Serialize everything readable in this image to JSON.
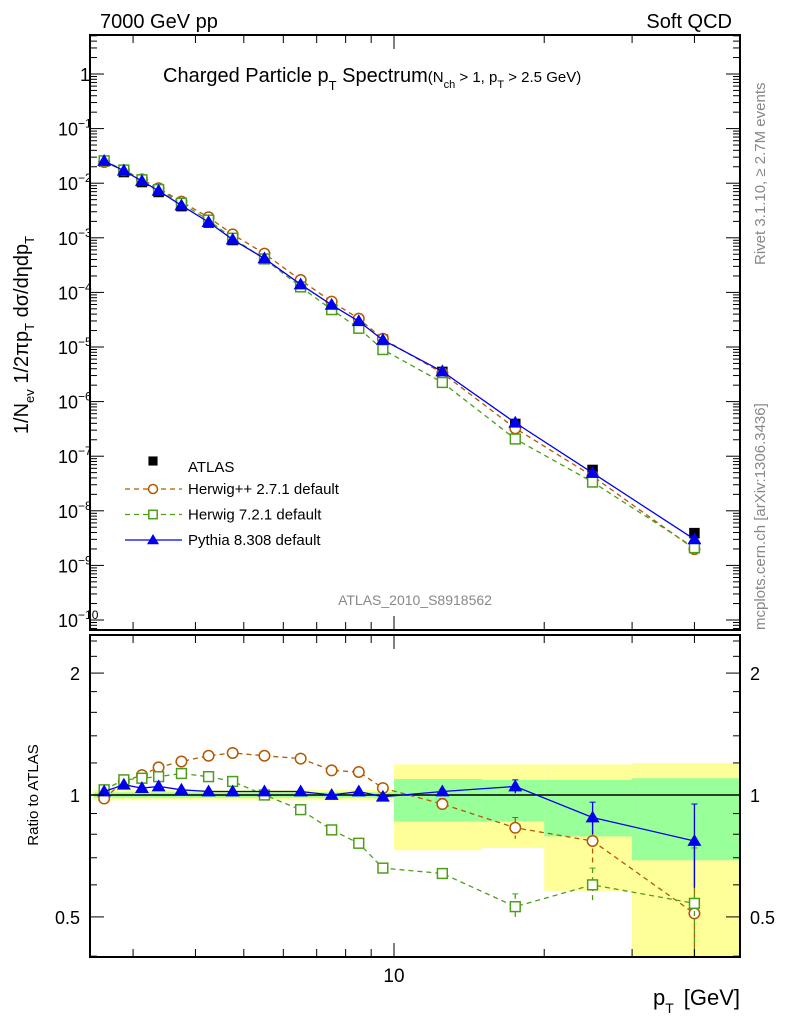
{
  "header": {
    "left": "7000 GeV pp",
    "right": "Soft QCD"
  },
  "side_text": {
    "rivet": "Rivet 3.1.10, ≥ 2.7M events",
    "mcplots": "mcplots.cern.ch [arXiv:1306.3436]"
  },
  "watermark": "ATLAS_2010_S8918562",
  "chart_data": {
    "type": "line",
    "title": {
      "main": "Charged Particle p",
      "main_sub": "T",
      "main_end": " Spectrum",
      "cond_a": "(N",
      "cond_a_sub": "ch",
      "cond_b": " > 1, p",
      "cond_b_sub": "T",
      "cond_c": " > 2.5 GeV)"
    },
    "xlabel": {
      "main": "p",
      "sub": "T",
      "unit": "[GeV]"
    },
    "ylabel": {
      "p1": "1/N",
      "p1_sub": "ev",
      "p2": " 1/2πp",
      "p2_sub": "T",
      "p3": " dσ/dηdp",
      "p3_sub": "T"
    },
    "ratio_ylabel": "Ratio to ATLAS",
    "xscale": "log",
    "xlim": [
      2.45,
      50
    ],
    "ylim": [
      6.5e-11,
      5
    ],
    "yscale": "log",
    "ratio_ylim": [
      0.4,
      2.5
    ],
    "x_tick_labels": [
      {
        "value": 10,
        "label": "10"
      }
    ],
    "y_tick_labels": [
      {
        "value": 1,
        "base": "1",
        "exp": ""
      },
      {
        "value": 0.1,
        "base": "10",
        "exp": "−1"
      },
      {
        "value": 0.01,
        "base": "10",
        "exp": "−2"
      },
      {
        "value": 0.001,
        "base": "10",
        "exp": "−3"
      },
      {
        "value": 0.0001,
        "base": "10",
        "exp": "−4"
      },
      {
        "value": 1e-05,
        "base": "10",
        "exp": "−5"
      },
      {
        "value": 1e-06,
        "base": "10",
        "exp": "−6"
      },
      {
        "value": 1e-07,
        "base": "10",
        "exp": "−7"
      },
      {
        "value": 1e-08,
        "base": "10",
        "exp": "−8"
      },
      {
        "value": 1e-09,
        "base": "10",
        "exp": "−9"
      },
      {
        "value": 1e-10,
        "base": "10",
        "exp": "−10"
      }
    ],
    "ratio_tick_labels": [
      {
        "value": 2,
        "label": "2"
      },
      {
        "value": 1,
        "label": "1"
      },
      {
        "value": 0.5,
        "label": "0.5"
      }
    ],
    "x": [
      2.625,
      2.875,
      3.125,
      3.375,
      3.75,
      4.25,
      4.75,
      5.5,
      6.5,
      7.5,
      8.5,
      9.5,
      12.5,
      17.5,
      25,
      40
    ],
    "bin_edges": [
      2.5,
      2.75,
      3,
      3.25,
      3.5,
      4,
      4.5,
      5,
      6,
      7,
      8,
      9,
      10,
      15,
      20,
      30,
      50
    ],
    "atlas": {
      "name": "ATLAS",
      "color": "#000000",
      "values": [
        0.025,
        0.016,
        0.0105,
        0.0069,
        0.0038,
        0.0019,
        0.00091,
        0.00041,
        0.000137,
        5.9e-05,
        2.9e-05,
        1.36e-05,
        3.5e-06,
        3.9e-07,
        5.6e-08,
        3.9e-09
      ],
      "band_total": [
        [
          0.97,
          1.03
        ],
        [
          0.97,
          1.03
        ],
        [
          0.97,
          1.03
        ],
        [
          0.97,
          1.03
        ],
        [
          0.97,
          1.03
        ],
        [
          0.97,
          1.03
        ],
        [
          0.97,
          1.03
        ],
        [
          0.97,
          1.03
        ],
        [
          0.97,
          1.03
        ],
        [
          0.97,
          1.03
        ],
        [
          0.97,
          1.03
        ],
        [
          0.97,
          1.03
        ],
        [
          0.73,
          1.19
        ],
        [
          0.74,
          1.19
        ],
        [
          0.58,
          1.19
        ],
        [
          0.3,
          1.2
        ]
      ],
      "band_stat": [
        [
          0.985,
          1.015
        ],
        [
          0.985,
          1.015
        ],
        [
          0.985,
          1.015
        ],
        [
          0.985,
          1.015
        ],
        [
          0.985,
          1.015
        ],
        [
          0.985,
          1.015
        ],
        [
          0.985,
          1.015
        ],
        [
          0.985,
          1.015
        ],
        [
          0.985,
          1.015
        ],
        [
          0.985,
          1.015
        ],
        [
          0.985,
          1.015
        ],
        [
          0.985,
          1.015
        ],
        [
          0.86,
          1.095
        ],
        [
          0.86,
          1.09
        ],
        [
          0.79,
          1.09
        ],
        [
          0.69,
          1.1
        ]
      ],
      "band_total_color": "#ffff99",
      "band_stat_color": "#99ff99"
    },
    "series": [
      {
        "name": "Herwig++ 2.7.1 default",
        "color": "#b35900",
        "marker": "circle",
        "dashed": true,
        "ratio": [
          0.98,
          1.08,
          1.12,
          1.17,
          1.21,
          1.25,
          1.27,
          1.25,
          1.23,
          1.15,
          1.14,
          1.04,
          0.95,
          0.83,
          0.77,
          0.51
        ],
        "ratio_err": [
          0,
          0,
          0,
          0,
          0,
          0,
          0,
          0,
          0,
          0,
          0,
          0,
          0.03,
          0.05,
          0.09,
          0.25
        ]
      },
      {
        "name": "Herwig 7.2.1 default",
        "color": "#4c9e1a",
        "marker": "square",
        "dashed": true,
        "ratio": [
          1.03,
          1.09,
          1.1,
          1.11,
          1.13,
          1.11,
          1.08,
          1.0,
          0.92,
          0.82,
          0.76,
          0.66,
          0.64,
          0.53,
          0.6,
          0.54
        ],
        "ratio_err": [
          0,
          0,
          0,
          0,
          0,
          0,
          0,
          0,
          0,
          0,
          0,
          0,
          0.01,
          0.04,
          0.06,
          0.2
        ]
      },
      {
        "name": "Pythia 8.308 default",
        "color": "#0000ee",
        "marker": "triangle",
        "dashed": false,
        "ratio": [
          1.02,
          1.06,
          1.04,
          1.05,
          1.03,
          1.02,
          1.02,
          1.02,
          1.02,
          1.0,
          1.02,
          0.99,
          1.02,
          1.05,
          0.88,
          0.77
        ],
        "ratio_err": [
          0,
          0,
          0,
          0,
          0,
          0,
          0,
          0,
          0,
          0,
          0,
          0,
          0.01,
          0.04,
          0.08,
          0.18
        ]
      }
    ],
    "legend_position": "lower-left"
  }
}
